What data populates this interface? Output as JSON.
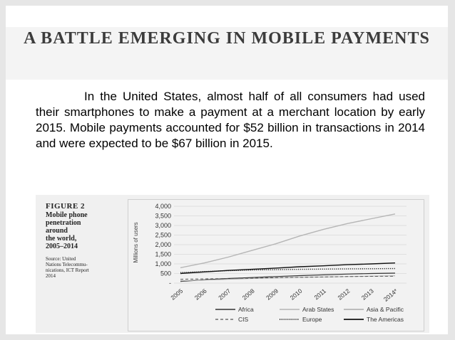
{
  "slide": {
    "title": "A BATTLE EMERGING IN MOBILE PAYMENTS",
    "body": "In the United States, almost half of all consumers had used their smartphones to make a payment at a merchant location by early 2015. Mobile payments accounted for $52 billion in transactions in 2014 and were expected to be $67 billion in 2015."
  },
  "figure": {
    "number": "FIGURE 2",
    "title": "Mobile phone\npenetration\naround\nthe world,\n2005–2014",
    "source": "Source: United\nNations Telecommu-\nnications, ICT Report\n2014"
  },
  "chart_data": {
    "type": "line",
    "ylabel": "Millions of users",
    "ylim": [
      0,
      4000
    ],
    "y_ticks": [
      {
        "value": 0,
        "label": "-"
      },
      {
        "value": 500,
        "label": "500"
      },
      {
        "value": 1000,
        "label": "1,000"
      },
      {
        "value": 1500,
        "label": "1,500"
      },
      {
        "value": 2000,
        "label": "2,000"
      },
      {
        "value": 2500,
        "label": "2,500"
      },
      {
        "value": 3000,
        "label": "3,000"
      },
      {
        "value": 3500,
        "label": "3,500"
      },
      {
        "value": 4000,
        "label": "4,000"
      }
    ],
    "categories": [
      "2005",
      "2006",
      "2007",
      "2008",
      "2009",
      "2010",
      "2011",
      "2012",
      "2013",
      "2014*"
    ],
    "grid": true,
    "legend_position": "bottom",
    "series": [
      {
        "name": "Africa",
        "style": "solid",
        "color": "#333333",
        "width": 1.2,
        "values": [
          90,
          170,
          240,
          290,
          340,
          390,
          430,
          470,
          500,
          520
        ]
      },
      {
        "name": "Arab States",
        "style": "solid",
        "color": "#a8a8a8",
        "width": 1.0,
        "values": [
          120,
          160,
          200,
          240,
          270,
          300,
          320,
          340,
          360,
          380
        ]
      },
      {
        "name": "Asia & Pacific",
        "style": "solid",
        "color": "#b5b5b5",
        "width": 1.4,
        "values": [
          800,
          1050,
          1350,
          1700,
          2050,
          2450,
          2800,
          3100,
          3350,
          3600
        ]
      },
      {
        "name": "CIS",
        "style": "dashed",
        "color": "#555555",
        "width": 1.0,
        "values": [
          200,
          220,
          240,
          260,
          280,
          300,
          320,
          340,
          350,
          360
        ]
      },
      {
        "name": "Europe",
        "style": "dotted",
        "color": "#222222",
        "width": 1.4,
        "values": [
          550,
          600,
          650,
          680,
          700,
          720,
          730,
          740,
          750,
          760
        ]
      },
      {
        "name": "The Americas",
        "style": "solid",
        "color": "#111111",
        "width": 1.4,
        "values": [
          500,
          580,
          660,
          720,
          780,
          850,
          900,
          960,
          1000,
          1050
        ]
      }
    ]
  }
}
